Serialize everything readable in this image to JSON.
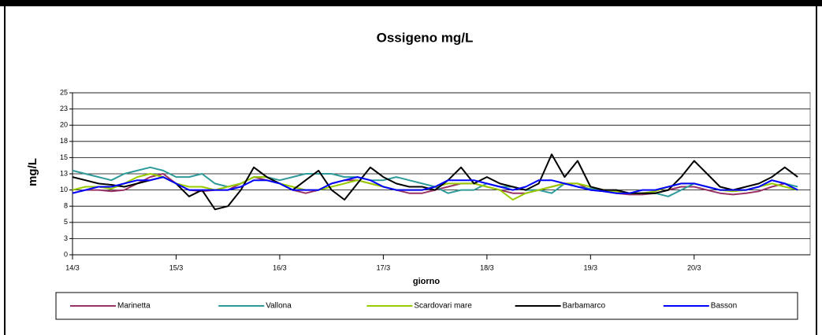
{
  "chart_data": {
    "type": "line",
    "title": "Ossigeno mg/L",
    "x_label": "giorno",
    "y_label": "mg/L",
    "xlim": [
      0,
      7.12
    ],
    "xticks": [
      {
        "value": 0,
        "label": "14/3"
      },
      {
        "value": 1,
        "label": "15/3"
      },
      {
        "value": 2,
        "label": "16/3"
      },
      {
        "value": 3,
        "label": "17/3"
      },
      {
        "value": 4,
        "label": "18/3"
      },
      {
        "value": 5,
        "label": "19/3"
      },
      {
        "value": 6,
        "label": "20/3"
      }
    ],
    "ylim": [
      0,
      25
    ],
    "yticks": [
      0,
      {
        "value": 2.5,
        "label": "3"
      },
      5,
      {
        "value": 7.5,
        "label": "8"
      },
      10,
      {
        "value": 12.5,
        "label": "13"
      },
      15,
      {
        "value": 17.5,
        "label": "18"
      },
      20,
      {
        "value": 22.5,
        "label": "23"
      },
      25
    ],
    "grid": true,
    "x": [
      0,
      0.125,
      0.25,
      0.375,
      0.5,
      0.625,
      0.75,
      0.875,
      1,
      1.125,
      1.25,
      1.375,
      1.5,
      1.625,
      1.75,
      1.875,
      2,
      2.125,
      2.25,
      2.375,
      2.5,
      2.625,
      2.75,
      2.875,
      3,
      3.125,
      3.25,
      3.375,
      3.5,
      3.625,
      3.75,
      3.875,
      4,
      4.125,
      4.25,
      4.375,
      4.5,
      4.625,
      4.75,
      4.875,
      5,
      5.125,
      5.25,
      5.375,
      5.5,
      5.625,
      5.75,
      5.875,
      6,
      6.125,
      6.25,
      6.375,
      6.5,
      6.625,
      6.75,
      6.875,
      7
    ],
    "series": [
      {
        "name": "Marinetta",
        "color": "#993366",
        "values": [
          9.5,
          10,
          10,
          9.8,
          10,
          11,
          12,
          12.5,
          11,
          10,
          9.8,
          10,
          10,
          11,
          12,
          11.5,
          11,
          10,
          9.5,
          10,
          11,
          11.5,
          11.5,
          11,
          10.5,
          10,
          9.5,
          9.5,
          10,
          10.5,
          11,
          11,
          10.5,
          10,
          9.5,
          9.5,
          10,
          10.5,
          11,
          11,
          10,
          9.8,
          9.5,
          9.3,
          9.3,
          9.5,
          10,
          10.5,
          10.5,
          10,
          9.5,
          9.3,
          9.5,
          9.8,
          10.5,
          11,
          10
        ]
      },
      {
        "name": "Vallona",
        "color": "#2e9a9a",
        "values": [
          13,
          12.5,
          12,
          11.5,
          12.5,
          13,
          13.5,
          13,
          12,
          12,
          12.5,
          11,
          10.5,
          11,
          12,
          12,
          11.5,
          12,
          12.5,
          12.5,
          12.5,
          12,
          12,
          11.5,
          11.5,
          12,
          11.5,
          11,
          10.5,
          9.5,
          10,
          10,
          11,
          10.5,
          10.5,
          10,
          10,
          9.5,
          11,
          10.5,
          10.2,
          10,
          9.8,
          9.5,
          9.5,
          9.5,
          9,
          10,
          11,
          10.5,
          10,
          10,
          10,
          10.5,
          11.5,
          11,
          10.5
        ]
      },
      {
        "name": "Scardovari mare",
        "color": "#99cc00",
        "values": [
          10,
          10.5,
          10.5,
          10.2,
          11,
          12,
          12.5,
          12,
          11,
          10.5,
          10.5,
          10,
          10.5,
          11,
          12,
          12,
          11,
          10.5,
          10,
          10,
          10.5,
          11,
          11.5,
          11,
          10.5,
          10,
          10,
          10,
          10.5,
          11,
          11,
          11,
          10.5,
          10,
          8.5,
          9.5,
          10,
          10.5,
          11,
          11,
          10.5,
          10,
          9.8,
          9.5,
          9.5,
          9.8,
          10.5,
          11,
          11,
          10.5,
          10,
          9.8,
          10,
          10.5,
          11,
          10.5,
          10
        ]
      },
      {
        "name": "Barbamarco",
        "color": "#000000",
        "values": [
          12,
          11.5,
          11,
          10.8,
          10.5,
          11,
          11.5,
          12,
          11,
          9,
          10,
          7,
          7.5,
          10,
          13.5,
          12,
          11,
          10,
          11.5,
          13,
          10,
          8.5,
          11,
          13.5,
          12,
          11,
          10.5,
          10.5,
          10,
          11.5,
          13.5,
          11,
          12,
          11,
          10.5,
          10,
          11,
          15.5,
          12,
          14.5,
          10.5,
          10,
          10,
          9.5,
          9.5,
          9.5,
          10,
          12,
          14.5,
          12.5,
          10.5,
          10,
          10.5,
          11,
          12,
          13.5,
          12
        ]
      },
      {
        "name": "Basson",
        "color": "#0000ff",
        "values": [
          9.5,
          10,
          10.5,
          10.5,
          11,
          11.5,
          11.5,
          12,
          11,
          10,
          10,
          10,
          10,
          10.5,
          11.5,
          11.5,
          11,
          10,
          10,
          10,
          11,
          11.5,
          12,
          11.5,
          10.5,
          10,
          10,
          10,
          10.5,
          11.5,
          11.5,
          11.5,
          11,
          10.5,
          10,
          10.5,
          11.5,
          11.5,
          11,
          10.5,
          10,
          9.8,
          9.5,
          9.5,
          10,
          10,
          10.5,
          11,
          11,
          10.5,
          10,
          10,
          10,
          10.5,
          11.5,
          11,
          10
        ]
      }
    ]
  }
}
